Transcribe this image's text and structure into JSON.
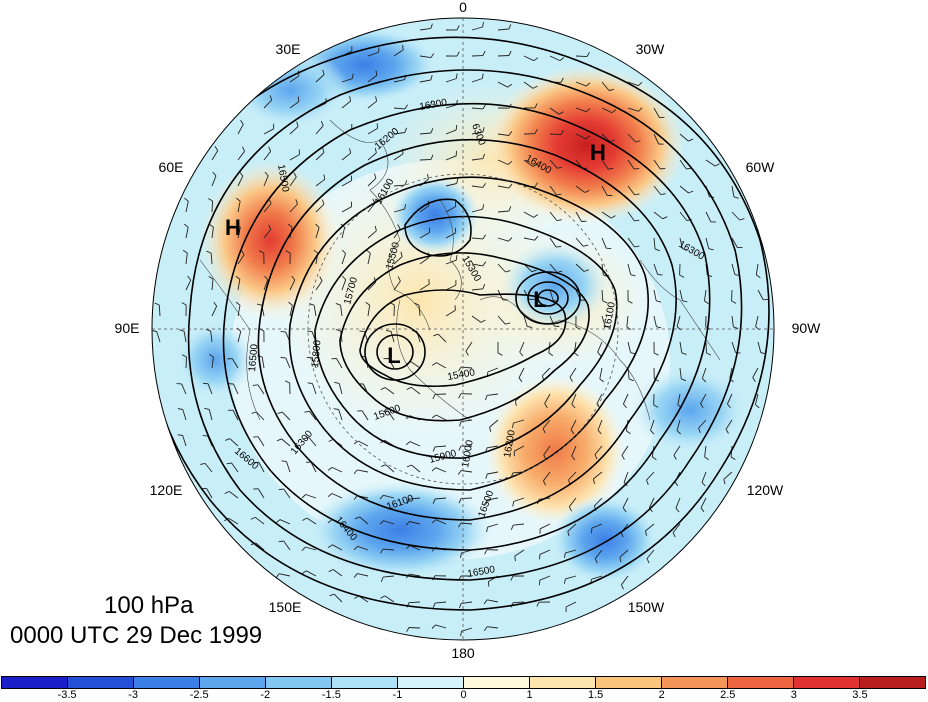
{
  "title": {
    "level": "100 hPa",
    "time": "0000 UTC 29 Dec 1999"
  },
  "longitude_labels": [
    "0",
    "30W",
    "60W",
    "90W",
    "120W",
    "150W",
    "180",
    "150E",
    "120E",
    "90E",
    "60E",
    "30E"
  ],
  "pressure_centers": [
    {
      "type": "H",
      "lon": "30W",
      "note": "high anomaly over North Atlantic"
    },
    {
      "type": "H",
      "lon": "60E",
      "note": "high over Ural region"
    },
    {
      "type": "L",
      "lon": "60W",
      "note": "low over Baffin region"
    },
    {
      "type": "L",
      "lon": "100E",
      "note": "low over Siberia"
    }
  ],
  "contour_labels": [
    "16300",
    "6300",
    "16400",
    "16200",
    "16100",
    "16500",
    "15300",
    "15500",
    "15700",
    "15800",
    "15400",
    "15600",
    "15900",
    "16000",
    "16200",
    "16300",
    "16500",
    "16100",
    "16400",
    "16500",
    "16500",
    "16600",
    "16300",
    "16100"
  ],
  "colorbar": {
    "colors": [
      "#1a1fc9",
      "#2450d8",
      "#3c7fe6",
      "#5da6ee",
      "#82c8f3",
      "#aee3f7",
      "#d6f3fb",
      "#fff8dc",
      "#fde6ae",
      "#fac47d",
      "#f4955a",
      "#ed6440",
      "#e03232",
      "#b81e1e"
    ],
    "labels": [
      "-3.5",
      "-3",
      "-2.5",
      "-2",
      "-1.5",
      "-1",
      "0",
      "1",
      "1.5",
      "2",
      "2.5",
      "3",
      "3.5"
    ]
  },
  "colors": {
    "map_border": "#000000",
    "contour": "#000000",
    "positive_anomaly": "#e03232",
    "negative_anomaly": "#3c7fe6"
  }
}
